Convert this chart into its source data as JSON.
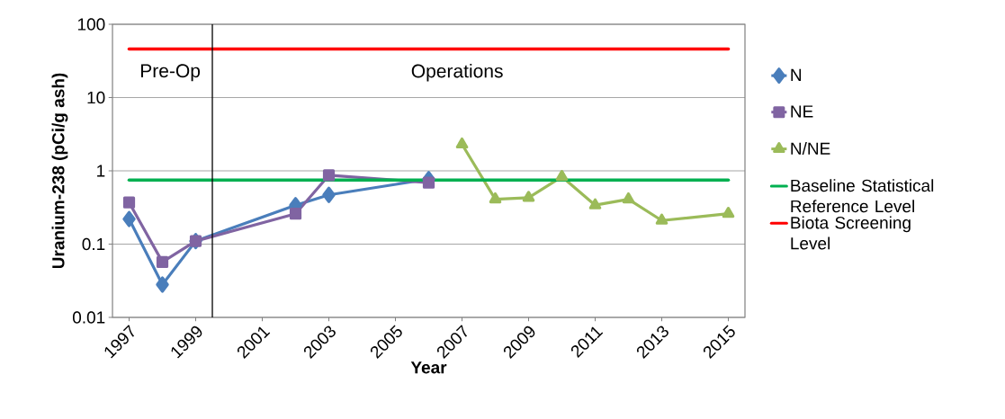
{
  "chart_data": {
    "type": "line",
    "xlabel": "Year",
    "ylabel": "Uranium-238 (pCi/g ash)",
    "log": "y",
    "grid": "y",
    "legend": "right",
    "line_style": "solid",
    "xlim": [
      1996.5,
      2015.5
    ],
    "xticks": [
      1997,
      1999,
      2001,
      2003,
      2005,
      2007,
      2009,
      2011,
      2013,
      2015
    ],
    "ylim": [
      0.01,
      100
    ],
    "yticks": [
      0.01,
      0.1,
      1,
      10,
      100
    ],
    "series": [
      {
        "name": "N",
        "color": "#4a7ebb",
        "marker": "diamond",
        "x": [
          1997,
          1998,
          1999,
          2002,
          2003,
          2006
        ],
        "values": [
          0.22,
          0.028,
          0.11,
          0.34,
          0.47,
          0.77
        ]
      },
      {
        "name": "NE",
        "color": "#8064a2",
        "marker": "square",
        "x": [
          1997,
          1998,
          1999,
          2002,
          2003,
          2006
        ],
        "values": [
          0.37,
          0.057,
          0.11,
          0.26,
          0.87,
          0.69
        ]
      },
      {
        "name": "N/NE",
        "color": "#9bbb59",
        "marker": "triangle",
        "x": [
          2007,
          2008,
          2009,
          2010,
          2011,
          2012,
          2013,
          2015
        ],
        "values": [
          2.3,
          0.41,
          0.43,
          0.83,
          0.34,
          0.41,
          0.21,
          0.26
        ]
      }
    ],
    "ref_lines": [
      {
        "axis": "y",
        "value": 0.75,
        "label": "Baseline Statistical Reference Level",
        "color": "#00b050"
      },
      {
        "axis": "y",
        "value": 46,
        "label": "Biota Screening Level",
        "color": "#ff0000"
      },
      {
        "axis": "x",
        "value": 1999.5,
        "color": "#000000"
      }
    ],
    "annotations": [
      "Pre-Op",
      "Operations"
    ]
  }
}
